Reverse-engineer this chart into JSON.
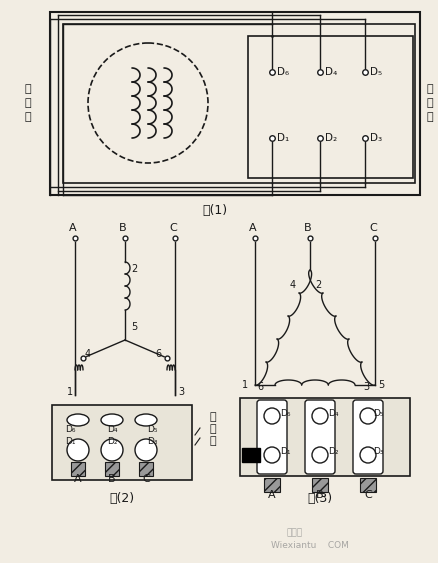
{
  "bg_color": "#f2ede3",
  "line_color": "#1a1a1a",
  "fig1_label": "图(1)",
  "fig2_label": "图(2)",
  "fig3_label": "图(3)",
  "motor_label": "电\n动\n机",
  "jiexianban": "接\n线\n板",
  "watermark": "接线图\nWiexiantu    COM"
}
